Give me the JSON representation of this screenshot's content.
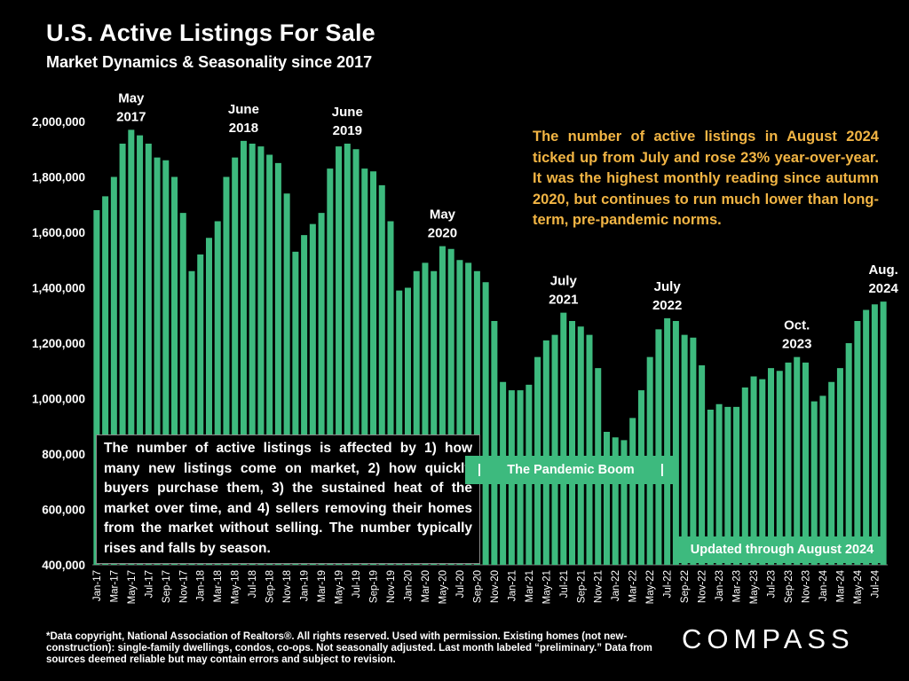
{
  "header": {
    "title": "U.S. Active Listings For Sale",
    "subtitle": "Market Dynamics & Seasonality since 2017"
  },
  "annotations": {
    "right_note": "The number of active listings in August 2024 ticked up from July and rose 23% year-over-year. It was the highest monthly reading since autumn 2020, but continues to run much lower than long-term, pre-pandemic norms.",
    "left_note": "The number of active listings is affected by 1) how many new listings come on market, 2) how quickly buyers purchase them, 3) the sustained heat of the market over time, and 4) sellers removing their homes from the market without selling. The number typically rises and falls by season.",
    "pandemic_label": "The Pandemic Boom",
    "pandemic_bar_left": "|",
    "pandemic_bar_right": "|",
    "updated_label": "Updated through August 2024",
    "peaks": [
      {
        "index": 4,
        "line1": "May",
        "line2": "2017"
      },
      {
        "index": 17,
        "line1": "June",
        "line2": "2018"
      },
      {
        "index": 29,
        "line1": "June",
        "line2": "2019"
      },
      {
        "index": 40,
        "line1": "May",
        "line2": "2020"
      },
      {
        "index": 54,
        "line1": "July",
        "line2": "2021"
      },
      {
        "index": 66,
        "line1": "July",
        "line2": "2022"
      },
      {
        "index": 81,
        "line1": "Oct.",
        "line2": "2023"
      },
      {
        "index": 91,
        "line1": "Aug.",
        "line2": "2024"
      }
    ]
  },
  "footnote": "*Data copyright, National Association of Realtors®. All rights reserved. Used with permission. Existing homes (not new-construction): single-family dwellings, condos, co-ops. Not seasonally adjusted. Last month labeled “preliminary.” Data from sources deemed reliable but may contain errors and subject to revision.",
  "logo": "COMPASS",
  "colors": {
    "bar": "#3dba7e",
    "note_text": "#f2b544",
    "background": "#000000"
  },
  "chart_data": {
    "type": "bar",
    "ylim": [
      400000,
      2000000
    ],
    "yticks": [
      400000,
      600000,
      800000,
      1000000,
      1200000,
      1400000,
      1600000,
      1800000,
      2000000
    ],
    "ytick_labels": [
      "400,000",
      "600,000",
      "800,000",
      "1,000,000",
      "1,200,000",
      "1,400,000",
      "1,600,000",
      "1,800,000",
      "2,000,000"
    ],
    "categories": [
      "Jan-17",
      "Feb-17",
      "Mar-17",
      "Apr-17",
      "May-17",
      "Jun-17",
      "Jul-17",
      "Aug-17",
      "Sep-17",
      "Oct-17",
      "Nov-17",
      "Dec-17",
      "Jan-18",
      "Feb-18",
      "Mar-18",
      "Apr-18",
      "May-18",
      "Jun-18",
      "Jul-18",
      "Aug-18",
      "Sep-18",
      "Oct-18",
      "Nov-18",
      "Dec-18",
      "Jan-19",
      "Feb-19",
      "Mar-19",
      "Apr-19",
      "May-19",
      "Jun-19",
      "Jul-19",
      "Aug-19",
      "Sep-19",
      "Oct-19",
      "Nov-19",
      "Dec-19",
      "Jan-20",
      "Feb-20",
      "Mar-20",
      "Apr-20",
      "May-20",
      "Jun-20",
      "Jul-20",
      "Aug-20",
      "Sep-20",
      "Oct-20",
      "Nov-20",
      "Dec-20",
      "Jan-21",
      "Feb-21",
      "Mar-21",
      "Apr-21",
      "May-21",
      "Jun-21",
      "Jul-21",
      "Aug-21",
      "Sep-21",
      "Oct-21",
      "Nov-21",
      "Dec-21",
      "Jan-22",
      "Feb-22",
      "Mar-22",
      "Apr-22",
      "May-22",
      "Jun-22",
      "Jul-22",
      "Aug-22",
      "Sep-22",
      "Oct-22",
      "Nov-22",
      "Dec-22",
      "Jan-23",
      "Feb-23",
      "Mar-23",
      "Apr-23",
      "May-23",
      "Jun-23",
      "Jul-23",
      "Aug-23",
      "Sep-23",
      "Oct-23",
      "Nov-23",
      "Dec-23",
      "Jan-24",
      "Feb-24",
      "Mar-24",
      "Apr-24",
      "May-24",
      "Jun-24",
      "Jul-24",
      "Aug-24"
    ],
    "values": [
      1680000,
      1730000,
      1800000,
      1920000,
      1970000,
      1950000,
      1920000,
      1870000,
      1860000,
      1800000,
      1670000,
      1460000,
      1520000,
      1580000,
      1640000,
      1800000,
      1870000,
      1930000,
      1920000,
      1910000,
      1880000,
      1850000,
      1740000,
      1530000,
      1590000,
      1630000,
      1670000,
      1830000,
      1910000,
      1920000,
      1900000,
      1830000,
      1820000,
      1770000,
      1640000,
      1390000,
      1400000,
      1460000,
      1490000,
      1460000,
      1550000,
      1540000,
      1500000,
      1490000,
      1460000,
      1420000,
      1280000,
      1060000,
      1030000,
      1030000,
      1050000,
      1150000,
      1210000,
      1230000,
      1310000,
      1280000,
      1260000,
      1230000,
      1110000,
      880000,
      860000,
      850000,
      930000,
      1030000,
      1150000,
      1250000,
      1290000,
      1280000,
      1230000,
      1220000,
      1120000,
      960000,
      980000,
      970000,
      970000,
      1040000,
      1080000,
      1070000,
      1110000,
      1100000,
      1130000,
      1150000,
      1130000,
      990000,
      1010000,
      1060000,
      1110000,
      1200000,
      1280000,
      1320000,
      1340000,
      1350000
    ],
    "xtick_labels": [
      "Jan-17",
      "Mar-17",
      "May-17",
      "Jul-17",
      "Sep-17",
      "Nov-17",
      "Jan-18",
      "Mar-18",
      "May-18",
      "Jul-18",
      "Sep-18",
      "Nov-18",
      "Jan-19",
      "Mar-19",
      "May-19",
      "Jul-19",
      "Sep-19",
      "Nov-19",
      "Jan-20",
      "Mar-20",
      "May-20",
      "Jul-20",
      "Sep-20",
      "Nov-20",
      "Jan-21",
      "Mar-21",
      "May-21",
      "Jul-21",
      "Sep-21",
      "Nov-21",
      "Jan-22",
      "Mar-22",
      "May-22",
      "Jul-22",
      "Sep-22",
      "Nov-22",
      "Jan-23",
      "Mar-23",
      "May-23",
      "Jul-23",
      "Sep-23",
      "Nov-23",
      "Jan-24",
      "Mar-24",
      "May-24",
      "Jul-24"
    ],
    "grid": false,
    "legend": "none"
  }
}
